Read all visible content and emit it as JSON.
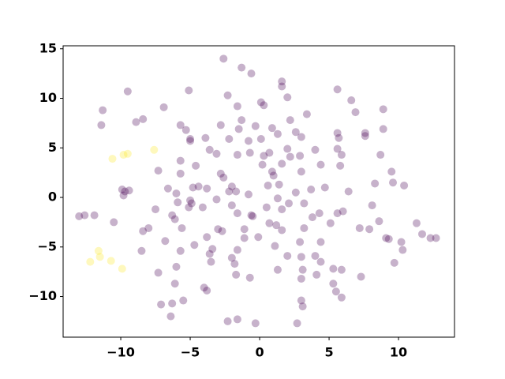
{
  "chart_data": {
    "type": "scatter",
    "xlim": [
      -14.15,
      14.03
    ],
    "ylim": [
      -14.1,
      15.3
    ],
    "xticks": [
      {
        "value": -10,
        "label": "−10"
      },
      {
        "value": -5,
        "label": "−5"
      },
      0,
      5,
      10
    ],
    "yticks": [
      {
        "value": -10,
        "label": "−10"
      },
      {
        "value": -5,
        "label": "−5"
      },
      0,
      5,
      10,
      15
    ],
    "alpha": 0.3,
    "series": [
      {
        "color": "#440154",
        "x": [
          -2.6,
          -1.3,
          -0.6,
          1.6,
          1.6,
          -9.5,
          -5.1,
          -2.3,
          0.1,
          0.3,
          2.0,
          -1.6,
          -11.3,
          -11.4,
          -8.9,
          -8.4,
          -6.9,
          6.6,
          6.9,
          8.9,
          5.6,
          3.4,
          -2.8,
          -1.3,
          -0.3,
          0.9,
          2.2,
          -5.7,
          -5.3,
          -5.0,
          -5.0,
          -3.9,
          -1.5,
          -2.2,
          -0.8,
          0.1,
          1.3,
          2.6,
          3.0,
          2.0,
          0.7,
          0.3,
          2.2,
          4.0,
          5.6,
          5.7,
          5.6,
          7.6,
          7.6,
          8.9,
          5.9,
          5.8,
          8.7,
          9.5,
          6.4,
          8.3,
          9.6,
          10.4,
          8.1,
          5.6,
          6.0,
          4.3,
          3.2,
          2.6,
          1.4,
          0.9,
          1.0,
          3.0,
          4.4,
          2.9,
          1.6,
          0.2,
          -0.7,
          -1.6,
          -3.1,
          -3.6,
          -4.6,
          -5.7,
          -5.7,
          -6.6,
          -7.3,
          -9.7,
          -9.9,
          -9.4,
          -9.8,
          -7.5,
          -6.3,
          -5.1,
          -5.0,
          -4.8,
          -4.4,
          -3.8,
          -2.8,
          -2.6,
          -2.0,
          -1.7,
          -0.8,
          0.6,
          1.3,
          1.6,
          2.1,
          3.7,
          4.7,
          -6.0,
          -5.9,
          -6.1,
          -4.1,
          -3.1,
          -2.2,
          -2.0,
          -1.6,
          -0.5,
          0.5,
          0.7,
          1.2,
          1.6,
          3.2,
          3.8,
          5.1,
          7.2,
          7.9,
          8.6,
          9.1,
          9.3,
          10.3,
          11.3,
          11.7,
          12.3,
          12.7,
          10.2,
          9.7,
          -11.9,
          -12.6,
          -13.0,
          -10.5,
          -8.4,
          -8.0,
          -8.5,
          -6.8,
          -5.6,
          -4.7,
          -3.8,
          -3.4,
          -2.7,
          -2.0,
          -1.6,
          -1.1,
          -1.1,
          -0.1,
          1.1,
          2.0,
          3.0,
          4.4,
          2.9,
          4.0,
          4.4,
          3.1,
          3.0,
          4.1,
          5.3,
          5.9,
          5.3,
          5.5,
          7.3,
          3.0,
          3.1,
          5.9,
          -3.5,
          -4.0,
          -3.8,
          -1.7,
          -0.7,
          -1.8,
          1.3,
          -6.0,
          -7.3,
          -6.1,
          -7.1,
          -6.3,
          -5.5,
          -6.4,
          -2.3,
          -1.6,
          -0.3,
          2.7,
          -5.7,
          -3.6,
          -4.9,
          -3.0,
          -0.6
        ],
        "values": [
          14.0,
          13.1,
          12.5,
          11.7,
          11.2,
          10.7,
          10.8,
          10.3,
          9.6,
          9.3,
          10.1,
          9.2,
          8.8,
          7.3,
          7.6,
          7.9,
          9.1,
          9.8,
          8.6,
          8.9,
          10.9,
          8.4,
          7.3,
          7.8,
          7.2,
          7.0,
          7.8,
          7.3,
          6.8,
          5.9,
          5.7,
          6.0,
          6.9,
          5.9,
          5.7,
          5.9,
          6.4,
          6.6,
          6.1,
          4.9,
          4.5,
          4.2,
          4.1,
          4.8,
          6.5,
          6.0,
          4.9,
          6.5,
          6.2,
          6.9,
          4.3,
          3.2,
          4.3,
          2.6,
          0.6,
          1.4,
          1.5,
          1.2,
          -0.8,
          -1.6,
          -1.4,
          -1.6,
          -0.6,
          0.5,
          1.3,
          2.6,
          2.2,
          2.6,
          3.3,
          4.2,
          3.4,
          3.3,
          4.5,
          4.3,
          4.4,
          4.8,
          3.2,
          3.7,
          2.4,
          0.9,
          2.7,
          0.6,
          0.8,
          0.7,
          0.2,
          -1.2,
          -1.8,
          -1.0,
          -0.3,
          1.0,
          1.1,
          0.9,
          2.4,
          2.0,
          1.1,
          0.6,
          0.3,
          1.2,
          -0.1,
          -1.2,
          -0.6,
          0.8,
          1.0,
          0.4,
          -0.5,
          -2.2,
          -1.0,
          -0.2,
          0.6,
          -0.8,
          -1.6,
          -1.9,
          -1.0,
          -2.6,
          -2.8,
          -3.3,
          -3.1,
          -2.0,
          -2.6,
          -3.1,
          -3.2,
          -2.4,
          -4.1,
          -4.2,
          -5.3,
          -2.6,
          -3.7,
          -4.1,
          -4.1,
          -4.5,
          -6.6,
          -1.8,
          -1.8,
          -1.9,
          -2.5,
          -3.4,
          -3.1,
          -5.4,
          -4.4,
          -3.1,
          -4.8,
          -4.0,
          -5.2,
          -3.4,
          -6.1,
          -5.3,
          -4.1,
          -3.2,
          -4.0,
          -4.9,
          -5.9,
          -6.0,
          -4.5,
          -4.5,
          -5.9,
          -6.5,
          -7.3,
          -8.2,
          -7.8,
          -7.2,
          -7.3,
          -8.7,
          -9.5,
          -8.0,
          -10.4,
          -11.0,
          -10.1,
          -6.5,
          -9.1,
          -9.4,
          -7.8,
          -8.1,
          -6.7,
          -7.3,
          -7.0,
          -7.6,
          -8.7,
          -10.8,
          -10.7,
          -10.4,
          -12.0,
          -12.5,
          -12.3,
          -12.7,
          -12.7,
          -5.4,
          -5.7,
          -0.6,
          -3.2,
          -1.8
        ]
      },
      {
        "color": "#fde725",
        "x": [
          -10.6,
          -9.8,
          -9.5,
          -7.6,
          -11.6,
          -11.5,
          -12.2,
          -10.7,
          -9.9
        ],
        "values": [
          3.9,
          4.3,
          4.4,
          4.8,
          -5.4,
          -6.0,
          -6.5,
          -6.4,
          -7.2
        ]
      }
    ]
  }
}
